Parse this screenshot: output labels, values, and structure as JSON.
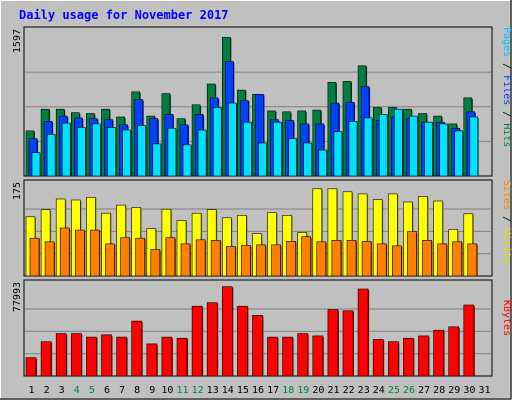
{
  "chart_data": {
    "type": "bar",
    "title": "Daily usage for November 2017",
    "categories": [
      "1",
      "2",
      "3",
      "4",
      "5",
      "6",
      "7",
      "8",
      "9",
      "10",
      "11",
      "12",
      "13",
      "14",
      "15",
      "16",
      "17",
      "18",
      "19",
      "20",
      "21",
      "22",
      "23",
      "24",
      "25",
      "26",
      "27",
      "28",
      "29",
      "30",
      "31"
    ],
    "weekend_days": [
      "4",
      "5",
      "11",
      "12",
      "18",
      "19",
      "25",
      "26"
    ],
    "panels": [
      {
        "name": "pages-files-hits",
        "ymax": 1597,
        "ytick_label": "1597",
        "series": [
          {
            "name": "Hits",
            "color": "#008040",
            "values": [
              520,
              770,
              770,
              730,
              720,
              770,
              680,
              970,
              690,
              950,
              660,
              820,
              1060,
              1597,
              990,
              940,
              750,
              740,
              750,
              760,
              1080,
              1090,
              1270,
              790,
              790,
              770,
              720,
              690,
              600,
              900,
              0
            ]
          },
          {
            "name": "Files",
            "color": "#0040ff",
            "values": [
              430,
              630,
              690,
              670,
              660,
              650,
              590,
              880,
              660,
              710,
              590,
              710,
              900,
              1320,
              870,
              940,
              650,
              640,
              600,
              600,
              840,
              850,
              1030,
              640,
              680,
              660,
              620,
              620,
              550,
              740,
              0
            ]
          },
          {
            "name": "Pages",
            "color": "#00e0ff",
            "values": [
              270,
              480,
              610,
              560,
              600,
              560,
              530,
              580,
              370,
              550,
              360,
              530,
              790,
              840,
              620,
              380,
              620,
              430,
              380,
              300,
              510,
              630,
              670,
              710,
              770,
              690,
              620,
              600,
              520,
              680,
              0
            ]
          }
        ]
      },
      {
        "name": "sites-visits",
        "ymax": 175,
        "ytick_label": "175",
        "series": [
          {
            "name": "Visits",
            "color": "#ffff00",
            "values": [
              116,
              130,
              151,
              149,
              154,
              123,
              139,
              134,
              93,
              131,
              109,
              123,
              130,
              114,
              119,
              83,
              124,
              119,
              85,
              171,
              171,
              165,
              161,
              150,
              161,
              145,
              156,
              147,
              91,
              122,
              0
            ]
          },
          {
            "name": "Sites",
            "color": "#ff8000",
            "values": [
              74,
              67,
              94,
              90,
              90,
              63,
              75,
              74,
              52,
              75,
              63,
              71,
              70,
              58,
              60,
              61,
              61,
              68,
              77,
              67,
              70,
              70,
              68,
              63,
              59,
              87,
              70,
              63,
              67,
              63,
              0
            ]
          }
        ]
      },
      {
        "name": "kbytes",
        "ymax": 77993,
        "ytick_label": "77993",
        "series": [
          {
            "name": "KBytes",
            "color": "#ff0000",
            "values": [
              16000,
              30000,
              37000,
              37000,
              34000,
              36000,
              34000,
              48000,
              28000,
              34000,
              33000,
              61000,
              64000,
              77993,
              61000,
              53000,
              34000,
              34000,
              37000,
              35000,
              58000,
              57000,
              76000,
              32000,
              30000,
              33000,
              35000,
              40000,
              43000,
              62000,
              0
            ]
          }
        ]
      }
    ],
    "legends": {
      "top": [
        {
          "text": "Pages",
          "color": "#00c0ff"
        },
        {
          "text": " / ",
          "color": "#000000"
        },
        {
          "text": "Files",
          "color": "#0040ff"
        },
        {
          "text": " / ",
          "color": "#000000"
        },
        {
          "text": "Hits",
          "color": "#008040"
        }
      ],
      "middle": [
        {
          "text": "Sites",
          "color": "#ff8000"
        },
        {
          "text": " / ",
          "color": "#000000"
        },
        {
          "text": "Visits",
          "color": "#e0e000"
        }
      ],
      "bottom": [
        {
          "text": "KBytes",
          "color": "#ff0000"
        }
      ]
    }
  }
}
